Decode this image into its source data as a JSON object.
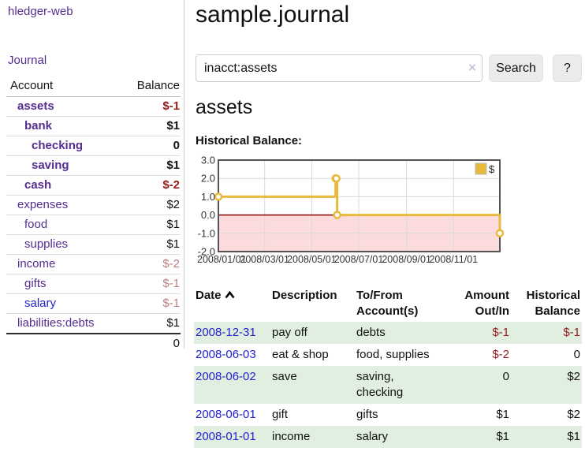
{
  "app": {
    "title": "hledger-web"
  },
  "sidebar": {
    "journal_link": "Journal",
    "accounts_table": {
      "headers": {
        "account": "Account",
        "balance": "Balance"
      },
      "rows": [
        {
          "name": "assets",
          "indent": 1,
          "bold": true,
          "balance": "$-1",
          "balance_style": "neg-strong",
          "link_color": "purple"
        },
        {
          "name": "bank",
          "indent": 2,
          "bold": true,
          "balance": "$1",
          "balance_style": "pos-strong",
          "link_color": "purple"
        },
        {
          "name": "checking",
          "indent": 3,
          "bold": true,
          "balance": "0",
          "balance_style": "pos-strong",
          "link_color": "purple"
        },
        {
          "name": "saving",
          "indent": 3,
          "bold": true,
          "balance": "$1",
          "balance_style": "pos-strong",
          "link_color": "purple"
        },
        {
          "name": "cash",
          "indent": 2,
          "bold": true,
          "balance": "$-2",
          "balance_style": "neg-strong",
          "link_color": "purple"
        },
        {
          "name": "expenses",
          "indent": 1,
          "bold": false,
          "balance": "$2",
          "balance_style": "plain",
          "link_color": "purple"
        },
        {
          "name": "food",
          "indent": 2,
          "bold": false,
          "balance": "$1",
          "balance_style": "plain",
          "link_color": "purple"
        },
        {
          "name": "supplies",
          "indent": 2,
          "bold": false,
          "balance": "$1",
          "balance_style": "plain",
          "link_color": "purple"
        },
        {
          "name": "income",
          "indent": 1,
          "bold": false,
          "balance": "$-2",
          "balance_style": "neg-soft",
          "link_color": "purple"
        },
        {
          "name": "gifts",
          "indent": 2,
          "bold": false,
          "balance": "$-1",
          "balance_style": "neg-soft",
          "link_color": "purple"
        },
        {
          "name": "salary",
          "indent": 2,
          "bold": false,
          "balance": "$-1",
          "balance_style": "neg-soft",
          "link_color": "blue"
        },
        {
          "name": "liabilities:debts",
          "indent": 1,
          "bold": false,
          "balance": "$1",
          "balance_style": "plain",
          "link_color": "purple"
        }
      ],
      "total": "0"
    }
  },
  "header": {
    "title": "sample.journal"
  },
  "search": {
    "value": "inacct:assets",
    "clear_icon": "×",
    "button_label": "Search",
    "help_label": "?"
  },
  "account_page": {
    "heading": "assets",
    "chart_label": "Historical Balance:"
  },
  "chart_data": {
    "type": "line",
    "line_style": "step",
    "title": "Historical Balance",
    "series": [
      {
        "name": "$",
        "points": [
          {
            "date": "2008-01-01",
            "value": 1
          },
          {
            "date": "2008-06-01",
            "value": 2
          },
          {
            "date": "2008-06-02",
            "value": 2
          },
          {
            "date": "2008-06-03",
            "value": 0
          },
          {
            "date": "2008-12-31",
            "value": -1
          }
        ]
      }
    ],
    "xlim": [
      "2008-01-01",
      "2008-12-31"
    ],
    "ylim": [
      -2,
      3
    ],
    "y_ticks": [
      {
        "value": 3,
        "label": "3.0"
      },
      {
        "value": 2,
        "label": "2.0"
      },
      {
        "value": 1,
        "label": "1.0"
      },
      {
        "value": 0,
        "label": "0.0"
      },
      {
        "value": -1,
        "label": "-1.0"
      },
      {
        "value": -2,
        "label": "-2.0"
      }
    ],
    "x_ticks": [
      {
        "date": "2008-01-01",
        "label": "2008/01/01"
      },
      {
        "date": "2008-03-01",
        "label": "2008/03/01"
      },
      {
        "date": "2008-05-01",
        "label": "2008/05/01"
      },
      {
        "date": "2008-07-01",
        "label": "2008/07/01"
      },
      {
        "date": "2008-09-01",
        "label": "2008/09/01"
      },
      {
        "date": "2008-11-01",
        "label": "2008/11/01"
      }
    ],
    "legend": {
      "label": "$",
      "position": "top-right"
    },
    "grid": true
  },
  "register_table": {
    "headers": {
      "date": "Date",
      "description": "Description",
      "accounts": "To/From Account(s)",
      "amount": "Amount Out/In",
      "balance": "Historical Balance"
    },
    "sort": {
      "column": "date",
      "direction": "asc"
    },
    "rows": [
      {
        "date": "2008-12-31",
        "description": "pay off",
        "accounts": "debts",
        "amount": "$-1",
        "amount_negative": true,
        "balance": "$-1",
        "balance_negative": true,
        "highlight": true
      },
      {
        "date": "2008-06-03",
        "description": "eat & shop",
        "accounts": "food, supplies",
        "amount": "$-2",
        "amount_negative": true,
        "balance": "0",
        "balance_negative": false,
        "highlight": false
      },
      {
        "date": "2008-06-02",
        "description": "save",
        "accounts": "saving, checking",
        "amount": "0",
        "amount_negative": false,
        "balance": "$2",
        "balance_negative": false,
        "highlight": true
      },
      {
        "date": "2008-06-01",
        "description": "gift",
        "accounts": "gifts",
        "amount": "$1",
        "amount_negative": false,
        "balance": "$2",
        "balance_negative": false,
        "highlight": false
      },
      {
        "date": "2008-01-01",
        "description": "income",
        "accounts": "salary",
        "amount": "$1",
        "amount_negative": false,
        "balance": "$1",
        "balance_negative": false,
        "highlight": true
      }
    ]
  },
  "colors": {
    "link_purple": "#552d90",
    "link_blue": "#2222cc",
    "negative_strong": "#971b1b",
    "negative_soft": "#bd7e7e",
    "row_highlight_green": "#e1efe1",
    "chart_line_gold": "#e7ba3d",
    "chart_negative_region_pink": "#fbdbdb",
    "chart_zero_line_red": "#8b0000",
    "chart_border_gray": "#545454",
    "chart_grid_gray": "#d9d9d9"
  }
}
